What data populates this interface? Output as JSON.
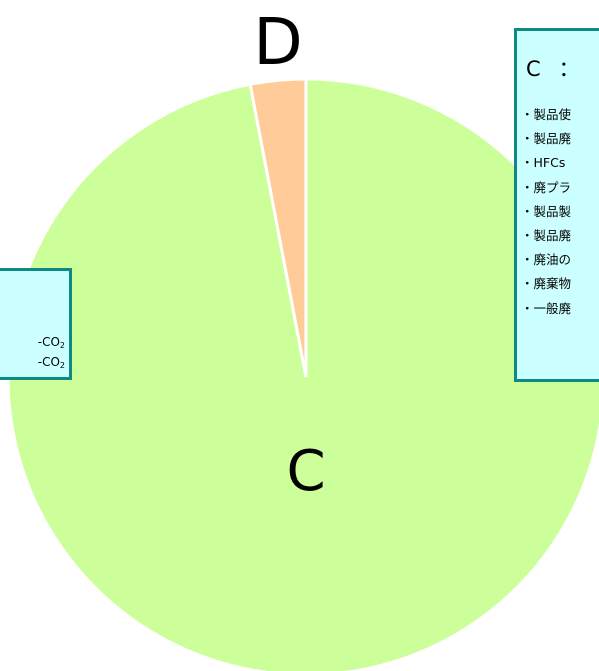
{
  "chart_data": {
    "type": "pie",
    "slices": [
      {
        "label": "C",
        "value": 97.0,
        "color": "#ccff99"
      },
      {
        "label": "D",
        "value": 3.0,
        "color": "#ffcc99"
      }
    ],
    "title": "",
    "legend": "none"
  },
  "left_box": {
    "lines": [
      "-CO",
      "-CO"
    ],
    "subscript": "2"
  },
  "right_box": {
    "heading_letter": "C",
    "heading_rest": "：",
    "items": [
      "・製品使",
      "・製品廃",
      "・HFCs",
      "・廃プラ",
      "・製品製",
      "・製品廃",
      "・廃油の",
      "・廃棄物",
      "・一般廃"
    ]
  },
  "colors": {
    "box_fill": "#ccffff",
    "box_border": "#0e8a82",
    "slice_separator": "#ffffff"
  }
}
